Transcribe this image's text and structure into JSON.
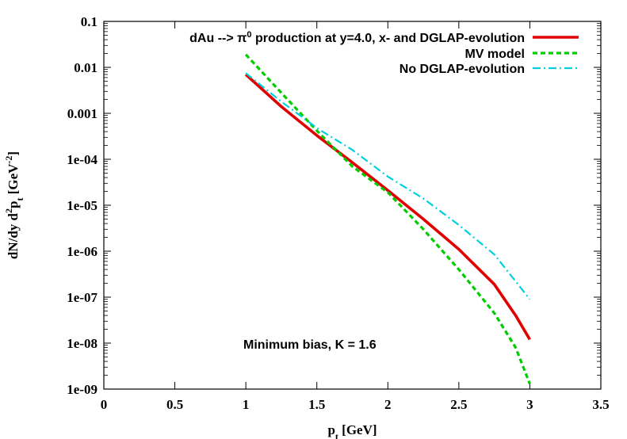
{
  "chart_data": {
    "type": "line",
    "x_scale": "linear",
    "y_scale": "log",
    "xlim": [
      0,
      3.5
    ],
    "ylim": [
      1e-09,
      0.1
    ],
    "x_ticks": [
      0,
      0.5,
      1,
      1.5,
      2,
      2.5,
      3,
      3.5
    ],
    "x_tick_labels": [
      "0",
      "0.5",
      "1",
      "1.5",
      "2",
      "2.5",
      "3",
      "3.5"
    ],
    "y_ticks": [
      1e-09,
      1e-08,
      1e-07,
      1e-06,
      1e-05,
      0.0001,
      0.001,
      0.01,
      0.1
    ],
    "y_tick_labels": [
      "1e-09",
      "1e-08",
      "1e-07",
      "1e-06",
      "1e-05",
      "1e-04",
      "0.001",
      "0.01",
      "0.1"
    ],
    "xlabel": {
      "base": "p",
      "sub": "t",
      "rest": " [GeV]"
    },
    "ylabel": {
      "p1": "dN/dy d",
      "sup1": "2",
      "p2": "p",
      "sub": "t",
      "p3": " [GeV",
      "sup2": "-2",
      "p4": "]"
    },
    "grid": false,
    "legend_position": "top-right",
    "annotation": "Minimum bias,   K = 1.6",
    "series": [
      {
        "name": "dAu --> π⁰ production at y=4.0, x- and DGLAP-evolution",
        "name_parts": {
          "pre": "dAu --> π",
          "sup": "0",
          "post": " production at y=4.0, x- and DGLAP-evolution"
        },
        "color": "#e00000",
        "dash": "solid",
        "x": [
          1.0,
          1.25,
          1.5,
          1.75,
          2.0,
          2.25,
          2.5,
          2.75,
          2.9,
          3.0
        ],
        "y": [
          0.007,
          0.0014,
          0.00033,
          8.5e-05,
          2.1e-05,
          5e-06,
          1.1e-06,
          1.9e-07,
          4e-08,
          1.2e-08
        ]
      },
      {
        "name": "MV model",
        "color": "#00cc00",
        "dash": "dashed",
        "x": [
          1.0,
          1.25,
          1.5,
          1.75,
          2.0,
          2.25,
          2.5,
          2.75,
          2.9,
          3.0
        ],
        "y": [
          0.019,
          0.0028,
          0.00042,
          7e-05,
          1.9e-05,
          3e-06,
          4e-07,
          4.5e-08,
          8e-09,
          1.3e-09
        ]
      },
      {
        "name": "No DGLAP-evolution",
        "color": "#00d0e0",
        "dash": "dashdot",
        "x": [
          1.0,
          1.25,
          1.5,
          1.75,
          2.0,
          2.25,
          2.5,
          2.75,
          3.0
        ],
        "y": [
          0.0075,
          0.0018,
          0.00048,
          0.00016,
          4.2e-05,
          1.4e-05,
          3.7e-06,
          8.5e-07,
          9e-08
        ]
      }
    ]
  }
}
